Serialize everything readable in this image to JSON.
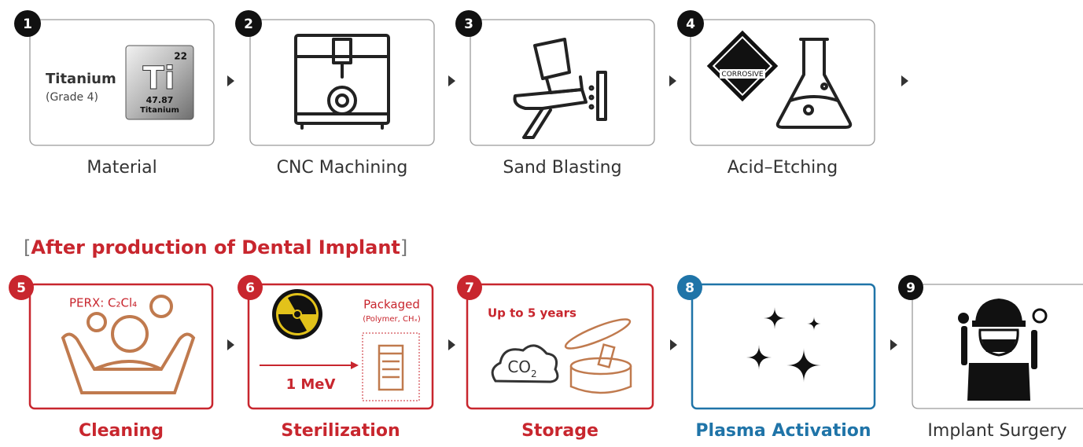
{
  "steps": [
    {
      "number": "1",
      "label": "Material",
      "material": "Titanium",
      "grade": "(Grade 4)",
      "element": {
        "atomic_number": "22",
        "symbol": "Ti",
        "mass": "47.87",
        "name": "Titanium"
      }
    },
    {
      "number": "2",
      "label": "CNC Machining"
    },
    {
      "number": "3",
      "label": "Sand Blasting"
    },
    {
      "number": "4",
      "label": "Acid–Etching",
      "sign": "CORROSIVE"
    }
  ],
  "section_title": {
    "open": "[",
    "text": "After production of Dental Implant",
    "close": "]"
  },
  "after_steps": [
    {
      "number": "5",
      "label": "Cleaning",
      "note": "PERX: C₂Cl₄"
    },
    {
      "number": "6",
      "label": "Sterilization",
      "packaged": "Packaged",
      "packaging": "(Polymer, CHₓ)",
      "energy": "1 MeV"
    },
    {
      "number": "7",
      "label": "Storage",
      "duration": "Up to 5 years",
      "gas": "CO",
      "gas_sub": "2"
    },
    {
      "number": "8",
      "label": "Plasma Activation"
    },
    {
      "number": "9",
      "label": "Implant Surgery"
    }
  ]
}
